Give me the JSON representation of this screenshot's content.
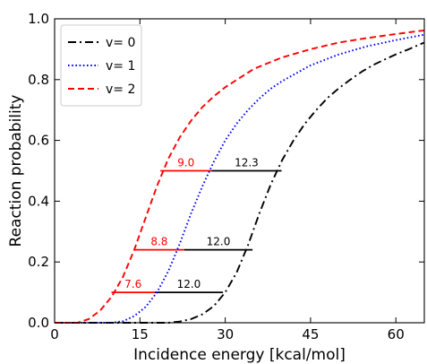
{
  "chart_data": {
    "type": "line",
    "title": "",
    "xlabel": "Incidence energy [kcal/mol]",
    "ylabel": "Reaction probability",
    "xlim": [
      0,
      65
    ],
    "ylim": [
      0,
      1.0
    ],
    "x_ticks": [
      0,
      15,
      30,
      45,
      60
    ],
    "y_ticks": [
      0.0,
      0.2,
      0.4,
      0.6,
      0.8,
      1.0
    ],
    "x_tick_labels": [
      "0",
      "15",
      "30",
      "45",
      "60"
    ],
    "y_tick_labels": [
      "0.0",
      "0.2",
      "0.4",
      "0.6",
      "0.8",
      "1.0"
    ],
    "grid": false,
    "legend_position": "top-left",
    "series": [
      {
        "name": "v= 0",
        "color": "#000000",
        "dash": "dashdot",
        "points": [
          [
            0,
            0
          ],
          [
            20,
            0
          ],
          [
            22,
            0.004
          ],
          [
            24,
            0.012
          ],
          [
            26,
            0.028
          ],
          [
            28,
            0.055
          ],
          [
            30,
            0.1
          ],
          [
            32,
            0.165
          ],
          [
            34,
            0.255
          ],
          [
            36,
            0.36
          ],
          [
            38,
            0.455
          ],
          [
            40,
            0.535
          ],
          [
            42,
            0.6
          ],
          [
            44,
            0.655
          ],
          [
            46,
            0.7
          ],
          [
            48,
            0.74
          ],
          [
            50,
            0.772
          ],
          [
            52,
            0.8
          ],
          [
            54,
            0.826
          ],
          [
            56,
            0.848
          ],
          [
            58,
            0.866
          ],
          [
            60,
            0.883
          ],
          [
            62,
            0.898
          ],
          [
            65,
            0.922
          ]
        ]
      },
      {
        "name": "v= 1",
        "color": "#0000ff",
        "dash": "dotted",
        "points": [
          [
            0,
            0
          ],
          [
            10,
            0
          ],
          [
            12,
            0.005
          ],
          [
            14,
            0.022
          ],
          [
            16,
            0.052
          ],
          [
            18,
            0.1
          ],
          [
            20,
            0.17
          ],
          [
            22,
            0.26
          ],
          [
            24,
            0.36
          ],
          [
            26,
            0.45
          ],
          [
            28,
            0.53
          ],
          [
            30,
            0.6
          ],
          [
            32,
            0.655
          ],
          [
            34,
            0.7
          ],
          [
            36,
            0.738
          ],
          [
            38,
            0.77
          ],
          [
            40,
            0.795
          ],
          [
            45,
            0.847
          ],
          [
            50,
            0.883
          ],
          [
            55,
            0.91
          ],
          [
            60,
            0.93
          ],
          [
            65,
            0.948
          ]
        ]
      },
      {
        "name": "v= 2",
        "color": "#ff0000",
        "dash": "dashed",
        "points": [
          [
            0,
            0
          ],
          [
            4,
            0
          ],
          [
            6,
            0.012
          ],
          [
            8,
            0.04
          ],
          [
            10,
            0.085
          ],
          [
            12,
            0.15
          ],
          [
            14,
            0.24
          ],
          [
            16,
            0.345
          ],
          [
            18,
            0.45
          ],
          [
            20,
            0.54
          ],
          [
            22,
            0.61
          ],
          [
            24,
            0.665
          ],
          [
            26,
            0.71
          ],
          [
            28,
            0.745
          ],
          [
            30,
            0.775
          ],
          [
            35,
            0.835
          ],
          [
            40,
            0.873
          ],
          [
            45,
            0.9
          ],
          [
            50,
            0.922
          ],
          [
            55,
            0.937
          ],
          [
            60,
            0.95
          ],
          [
            65,
            0.962
          ]
        ]
      }
    ],
    "threshold_lines": [
      {
        "y": 0.1,
        "segments": [
          {
            "x_start": 10,
            "x_end": 17.6,
            "color": "#ff0000",
            "label": "7.6"
          },
          {
            "x_start": 17.6,
            "x_end": 29.6,
            "color": "#000000",
            "label": "12.0"
          }
        ]
      },
      {
        "y": 0.24,
        "segments": [
          {
            "x_start": 14,
            "x_end": 22.8,
            "color": "#ff0000",
            "label": "8.8"
          },
          {
            "x_start": 22.8,
            "x_end": 34.8,
            "color": "#000000",
            "label": "12.0"
          }
        ]
      },
      {
        "y": 0.5,
        "segments": [
          {
            "x_start": 18.6,
            "x_end": 27.6,
            "color": "#ff0000",
            "label": "9.0"
          },
          {
            "x_start": 27.6,
            "x_end": 39.9,
            "color": "#000000",
            "label": "12.3"
          }
        ]
      }
    ]
  }
}
